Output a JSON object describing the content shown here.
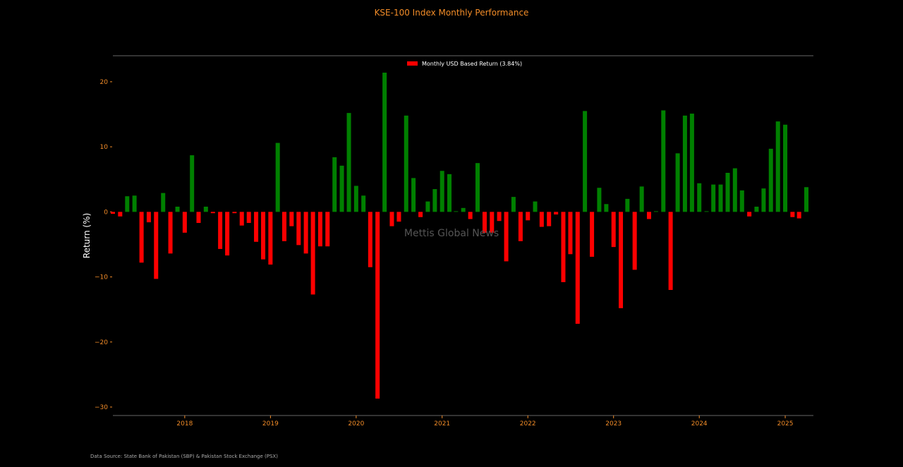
{
  "chart_data": {
    "type": "bar",
    "title": "KSE-100 Index Monthly Performance",
    "xlabel": "",
    "ylabel": "Return (%)",
    "ylim": [
      -31.3,
      24
    ],
    "xlim": [
      "2017-03-01",
      "2025-05-01"
    ],
    "yticks": [
      -30,
      -20,
      -10,
      0,
      10,
      20
    ],
    "year_ticks": [
      "2018",
      "2019",
      "2020",
      "2021",
      "2022",
      "2023",
      "2024",
      "2025"
    ],
    "legend": {
      "label": "Monthly USD Based Return (3.84%)",
      "position": "top-center",
      "color": "#ff0000"
    },
    "positive_color": "#008000",
    "negative_color": "#ff0000",
    "watermark": "Mettis Global News",
    "source": "Data Source: State Bank of Pakistan (SBP) & Pakistan Stock Exchange (PSX)",
    "series": [
      {
        "x": [
          "2017-03",
          "2017-04",
          "2017-05",
          "2017-06",
          "2017-07",
          "2017-08",
          "2017-09",
          "2017-10",
          "2017-11",
          "2017-12",
          "2018-01",
          "2018-02",
          "2018-03",
          "2018-04",
          "2018-05",
          "2018-06",
          "2018-07",
          "2018-08",
          "2018-09",
          "2018-10",
          "2018-11",
          "2018-12",
          "2019-01",
          "2019-02",
          "2019-03",
          "2019-04",
          "2019-05",
          "2019-06",
          "2019-07",
          "2019-08",
          "2019-09",
          "2019-10",
          "2019-11",
          "2019-12",
          "2020-01",
          "2020-02",
          "2020-03",
          "2020-04",
          "2020-05",
          "2020-06",
          "2020-07",
          "2020-08",
          "2020-09",
          "2020-10",
          "2020-11",
          "2020-12",
          "2021-01",
          "2021-02",
          "2021-03",
          "2021-04",
          "2021-05",
          "2021-06",
          "2021-07",
          "2021-08",
          "2021-09",
          "2021-10",
          "2021-11",
          "2021-12",
          "2022-01",
          "2022-02",
          "2022-03",
          "2022-04",
          "2022-05",
          "2022-06",
          "2022-07",
          "2022-08",
          "2022-09",
          "2022-10",
          "2022-11",
          "2022-12",
          "2023-01",
          "2023-02",
          "2023-03",
          "2023-04",
          "2023-05",
          "2023-06",
          "2023-07",
          "2023-08",
          "2023-09",
          "2023-10",
          "2023-11",
          "2023-12",
          "2024-01",
          "2024-02",
          "2024-03",
          "2024-04",
          "2024-05",
          "2024-06",
          "2024-07",
          "2024-08",
          "2024-09",
          "2024-10",
          "2024-11",
          "2024-12",
          "2025-01",
          "2025-02",
          "2025-03",
          "2025-04"
        ],
        "values": [
          -0.3,
          -0.7,
          2.4,
          2.5,
          -7.8,
          -1.6,
          -10.3,
          2.9,
          -6.4,
          0.8,
          -3.2,
          8.7,
          -1.7,
          0.8,
          -0.2,
          -5.7,
          -6.7,
          -0.2,
          -2.1,
          -1.7,
          -4.6,
          -7.3,
          -8.1,
          10.6,
          -4.5,
          -2.2,
          -5.1,
          -6.4,
          -12.7,
          -5.3,
          -5.3,
          8.4,
          7.1,
          15.2,
          4.0,
          2.5,
          -8.5,
          -28.7,
          21.4,
          -2.2,
          -1.5,
          14.8,
          5.2,
          -0.8,
          1.6,
          3.5,
          6.3,
          5.8,
          0.1,
          0.6,
          -1.1,
          7.5,
          -3.2,
          -3.2,
          -1.4,
          -7.6,
          2.3,
          -4.5,
          -1.3,
          1.6,
          -2.3,
          -2.2,
          -0.4,
          -10.8,
          -6.5,
          -17.2,
          15.5,
          -6.9,
          3.7,
          1.2,
          -5.4,
          -14.8,
          2.0,
          -8.9,
          3.9,
          -1.1,
          0.1,
          15.6,
          -12.0,
          9.0,
          14.8,
          15.1,
          4.4,
          0.1,
          4.2,
          4.2,
          6.0,
          6.7,
          3.3,
          -0.7,
          0.8,
          3.6,
          9.7,
          13.9,
          13.4,
          -0.8,
          -1.0,
          3.8
        ]
      }
    ]
  }
}
